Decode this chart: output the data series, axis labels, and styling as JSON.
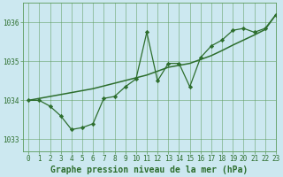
{
  "title": "Graphe pression niveau de la mer (hPa)",
  "background_color": "#cce8f0",
  "grid_color": "#5a9a5a",
  "line_color": "#2d6e2d",
  "marker_color": "#2d6e2d",
  "xlim": [
    -0.5,
    23
  ],
  "ylim": [
    1032.7,
    1036.5
  ],
  "yticks": [
    1033,
    1034,
    1035,
    1036
  ],
  "xticks": [
    0,
    1,
    2,
    3,
    4,
    5,
    6,
    7,
    8,
    9,
    10,
    11,
    12,
    13,
    14,
    15,
    16,
    17,
    18,
    19,
    20,
    21,
    22,
    23
  ],
  "series1_x": [
    0,
    1,
    2,
    3,
    4,
    5,
    6,
    7,
    8,
    9,
    10,
    11,
    12,
    13,
    14,
    15,
    16,
    17,
    18,
    19,
    20,
    21,
    22,
    23
  ],
  "series1_y": [
    1034.0,
    1034.0,
    1033.85,
    1033.6,
    1033.25,
    1033.3,
    1033.4,
    1034.05,
    1034.1,
    1034.35,
    1034.55,
    1035.75,
    1034.5,
    1034.95,
    1034.95,
    1034.35,
    1035.1,
    1035.4,
    1035.55,
    1035.8,
    1035.85,
    1035.75,
    1035.85,
    1036.2
  ],
  "series2_x": [
    0,
    1,
    2,
    3,
    4,
    5,
    6,
    7,
    8,
    9,
    10,
    11,
    12,
    13,
    14,
    15,
    16,
    17,
    18,
    19,
    20,
    21,
    22,
    23
  ],
  "series2_y": [
    1034.0,
    1034.05,
    1034.1,
    1034.15,
    1034.2,
    1034.25,
    1034.3,
    1034.37,
    1034.44,
    1034.51,
    1034.58,
    1034.65,
    1034.75,
    1034.85,
    1034.9,
    1034.95,
    1035.05,
    1035.15,
    1035.28,
    1035.42,
    1035.55,
    1035.68,
    1035.82,
    1036.2
  ],
  "tick_fontsize": 5.5,
  "title_fontsize": 7
}
